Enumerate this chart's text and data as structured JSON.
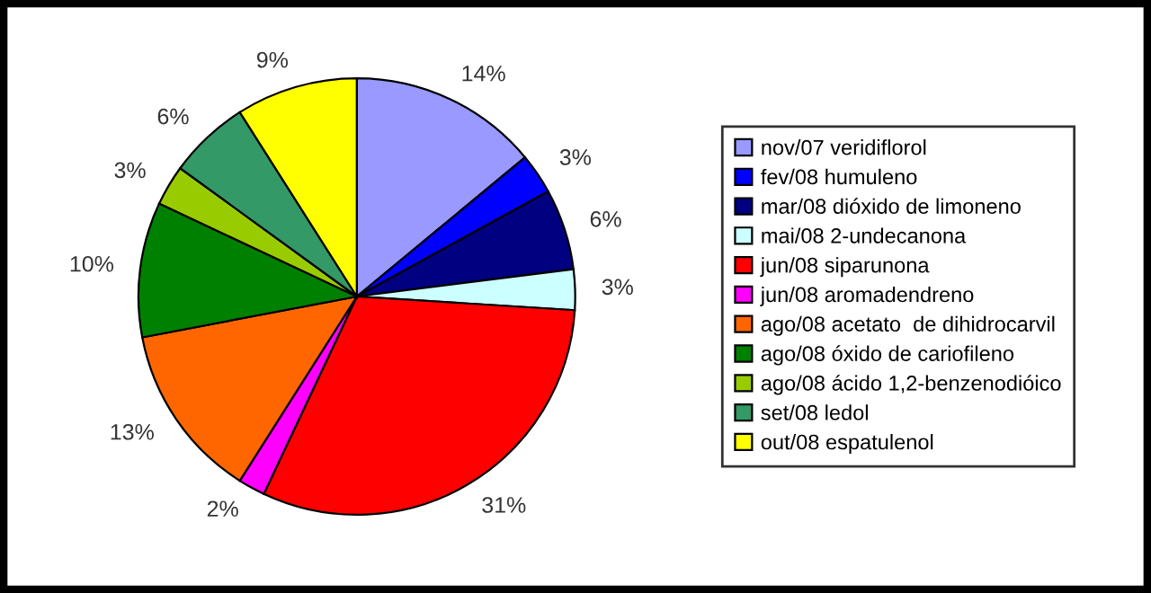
{
  "chart_data": {
    "type": "pie",
    "categories": [
      "nov/07 veridiflorol",
      "fev/08 humuleno",
      "mar/08 dióxido de limoneno",
      "mai/08 2-undecanona",
      "jun/08 siparunona",
      "jun/08 aromadendreno",
      "ago/08 acetato  de dihidrocarvil",
      "ago/08 óxido de cariofileno",
      "ago/08 ácido 1,2-benzenodióico",
      "set/08 ledol",
      "out/08 espatulenol"
    ],
    "values": [
      14,
      3,
      6,
      3,
      31,
      2,
      13,
      10,
      3,
      6,
      9
    ],
    "value_labels": [
      "14%",
      "3%",
      "6%",
      "3%",
      "31%",
      "2%",
      "13%",
      "10%",
      "3%",
      "6%",
      "9%"
    ],
    "colors": [
      "#9999ff",
      "#0000ff",
      "#000080",
      "#ccffff",
      "#ff0000",
      "#ff00ff",
      "#ff6600",
      "#008000",
      "#99cc00",
      "#339966",
      "#ffff00"
    ],
    "legend": "right"
  }
}
